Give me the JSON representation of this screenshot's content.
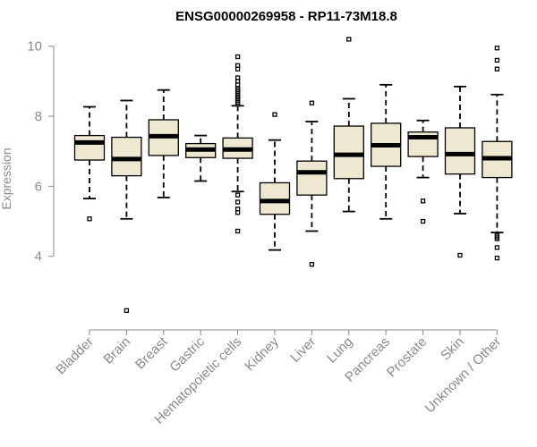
{
  "chart_data": {
    "type": "boxplot",
    "title": "ENSG00000269958 - RP11-73M18.8",
    "ylabel": "Expression",
    "xlabel": "",
    "ylim": [
      2.0,
      10.3
    ],
    "yticks": [
      4,
      6,
      8,
      10
    ],
    "box_color": "#efe8d0",
    "categories": [
      "Bladder",
      "Brain",
      "Breast",
      "Gastric",
      "Hematopoietic cells",
      "Kidney",
      "Liver",
      "Lung",
      "Pancreas",
      "Prostate",
      "Skin",
      "Unknown / Other"
    ],
    "boxes": [
      {
        "category": "Bladder",
        "whisker_low": 5.65,
        "q1": 6.75,
        "median": 7.25,
        "q3": 7.45,
        "whisker_high": 8.27,
        "outliers": [
          5.07
        ]
      },
      {
        "category": "Brain",
        "whisker_low": 5.07,
        "q1": 6.3,
        "median": 6.78,
        "q3": 7.4,
        "whisker_high": 8.45,
        "outliers": [
          2.45
        ]
      },
      {
        "category": "Breast",
        "whisker_low": 5.68,
        "q1": 6.88,
        "median": 7.43,
        "q3": 7.9,
        "whisker_high": 8.75,
        "outliers": []
      },
      {
        "category": "Gastric",
        "whisker_low": 6.15,
        "q1": 6.82,
        "median": 7.05,
        "q3": 7.22,
        "whisker_high": 7.45,
        "outliers": []
      },
      {
        "category": "Hematopoietic cells",
        "whisker_low": 5.85,
        "q1": 6.8,
        "median": 7.05,
        "q3": 7.38,
        "whisker_high": 8.3,
        "outliers": [
          9.7,
          9.45,
          9.35,
          9.1,
          9.0,
          8.9,
          8.8,
          8.75,
          8.7,
          8.65,
          8.6,
          8.55,
          8.5,
          8.45,
          8.4,
          8.35,
          5.75,
          5.55,
          5.35,
          5.25,
          4.72
        ]
      },
      {
        "category": "Kidney",
        "whisker_low": 4.18,
        "q1": 5.2,
        "median": 5.58,
        "q3": 6.1,
        "whisker_high": 7.32,
        "outliers": [
          8.05
        ]
      },
      {
        "category": "Liver",
        "whisker_low": 4.72,
        "q1": 5.75,
        "median": 6.4,
        "q3": 6.72,
        "whisker_high": 7.85,
        "outliers": [
          8.38,
          3.77
        ]
      },
      {
        "category": "Lung",
        "whisker_low": 5.28,
        "q1": 6.22,
        "median": 6.9,
        "q3": 7.72,
        "whisker_high": 8.5,
        "outliers": [
          10.2
        ]
      },
      {
        "category": "Pancreas",
        "whisker_low": 5.07,
        "q1": 6.57,
        "median": 7.17,
        "q3": 7.8,
        "whisker_high": 8.9,
        "outliers": []
      },
      {
        "category": "Prostate",
        "whisker_low": 6.25,
        "q1": 6.85,
        "median": 7.4,
        "q3": 7.55,
        "whisker_high": 7.88,
        "outliers": [
          5.58,
          5.0
        ]
      },
      {
        "category": "Skin",
        "whisker_low": 5.22,
        "q1": 6.35,
        "median": 6.92,
        "q3": 7.67,
        "whisker_high": 8.85,
        "outliers": [
          4.03
        ]
      },
      {
        "category": "Unknown / Other",
        "whisker_low": 4.68,
        "q1": 6.25,
        "median": 6.8,
        "q3": 7.28,
        "whisker_high": 8.62,
        "outliers": [
          9.95,
          9.6,
          9.35,
          4.6,
          4.55,
          4.5,
          4.25,
          3.95
        ]
      }
    ]
  }
}
